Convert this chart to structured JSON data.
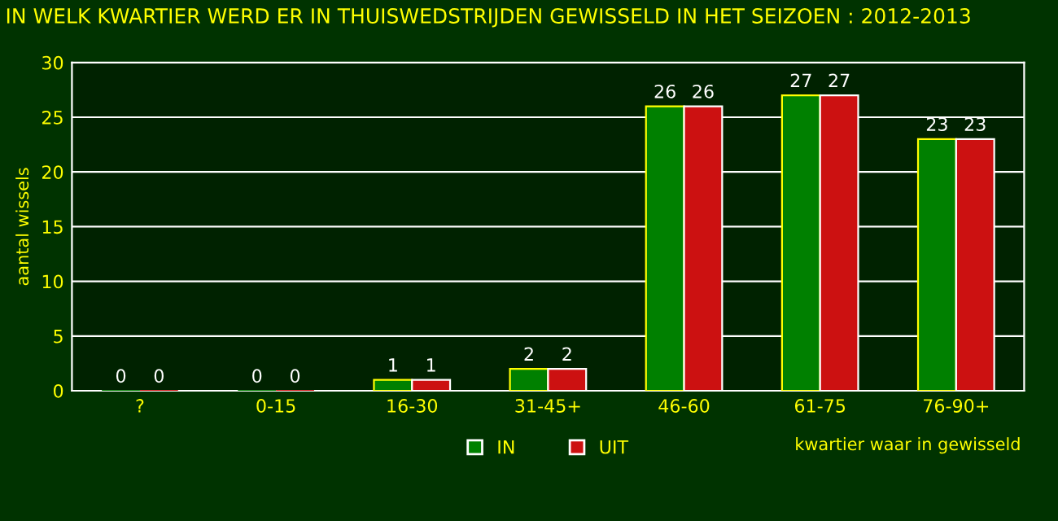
{
  "chart_data": {
    "type": "bar",
    "title": "IN WELK KWARTIER WERD ER IN THUISWEDSTRIJDEN GEWISSELD IN HET SEIZOEN : 2012-2013",
    "xlabel": "kwartier waar in gewisseld",
    "ylabel": "aantal wissels",
    "categories": [
      "?",
      "0-15",
      "16-30",
      "31-45+",
      "46-60",
      "61-75",
      "76-90+"
    ],
    "series": [
      {
        "name": "IN",
        "color": "#008000",
        "values": [
          0,
          0,
          1,
          2,
          26,
          27,
          23
        ]
      },
      {
        "name": "UIT",
        "color": "#cc1111",
        "values": [
          0,
          0,
          1,
          2,
          26,
          27,
          23
        ]
      }
    ],
    "ylim": [
      0,
      30
    ],
    "yticks": [
      0,
      5,
      10,
      15,
      20,
      25,
      30
    ],
    "grid": "y",
    "legend": "bottom",
    "data_labels": true
  }
}
